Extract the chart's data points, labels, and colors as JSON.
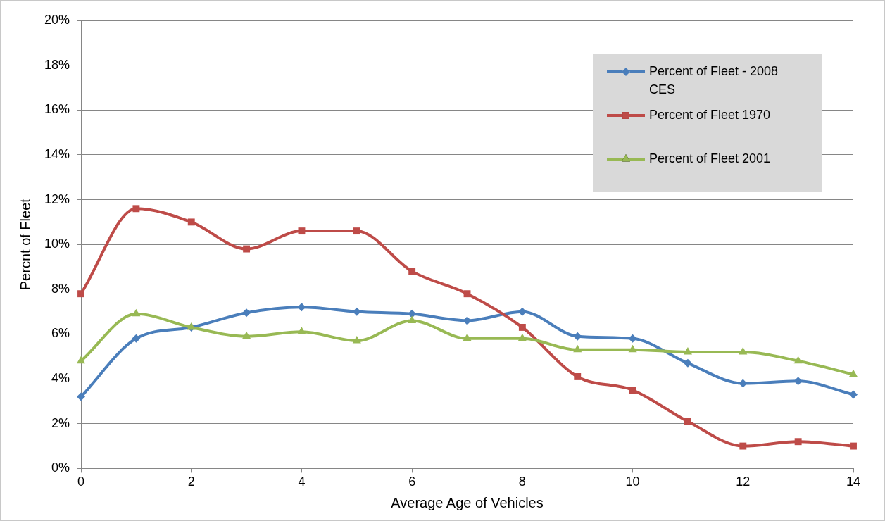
{
  "chart_data": {
    "type": "line",
    "xlabel": "Average Age of Vehicles",
    "ylabel": "Percnt of Fleet",
    "x": [
      0,
      1,
      2,
      3,
      4,
      5,
      6,
      7,
      8,
      9,
      10,
      11,
      12,
      13,
      14
    ],
    "series": [
      {
        "name": "Percent of Fleet - 2008 CES",
        "color": "#4a7ebb",
        "marker": "diamond",
        "values": [
          3.2,
          5.8,
          6.3,
          6.95,
          7.2,
          7.0,
          6.9,
          6.6,
          7.0,
          5.9,
          5.8,
          4.7,
          3.8,
          3.9,
          3.3
        ]
      },
      {
        "name": "Percent of Fleet 1970",
        "color": "#be4b48",
        "marker": "square",
        "values": [
          7.8,
          11.6,
          11.0,
          9.8,
          10.6,
          10.6,
          8.8,
          7.8,
          6.3,
          4.1,
          3.5,
          2.1,
          1.0,
          1.2,
          1.0
        ]
      },
      {
        "name": "Percent of Fleet 2001",
        "color": "#98b954",
        "marker": "triangle",
        "values": [
          4.8,
          6.9,
          6.3,
          5.9,
          6.1,
          5.7,
          6.6,
          5.8,
          5.8,
          5.3,
          5.3,
          5.2,
          5.2,
          4.8,
          4.2
        ]
      }
    ],
    "xlim": [
      0,
      14
    ],
    "xticks": [
      0,
      2,
      4,
      6,
      8,
      10,
      12,
      14
    ],
    "ylim": [
      0,
      20
    ],
    "yticks": [
      {
        "value": 0,
        "label": "0%"
      },
      {
        "value": 2,
        "label": "2%"
      },
      {
        "value": 4,
        "label": "4%"
      },
      {
        "value": 6,
        "label": "6%"
      },
      {
        "value": 8,
        "label": "8%"
      },
      {
        "value": 10,
        "label": "10%"
      },
      {
        "value": 12,
        "label": "12%"
      },
      {
        "value": 14,
        "label": "14%"
      },
      {
        "value": 16,
        "label": "16%"
      },
      {
        "value": 18,
        "label": "18%"
      },
      {
        "value": 20,
        "label": "20%"
      }
    ],
    "grid": "y",
    "legend": "top right",
    "line_style": "solid"
  }
}
